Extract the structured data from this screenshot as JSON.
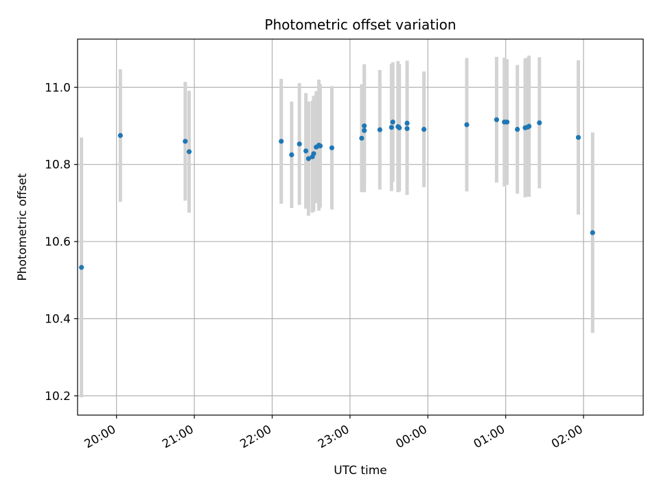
{
  "chart_data": {
    "type": "scatter",
    "title": "Photometric offset variation",
    "xlabel": "UTC time",
    "ylabel": "Photometric offset",
    "x_unit": "UTC time (HH:MM)",
    "xlim": [
      "19:33",
      "02:46"
    ],
    "ylim": [
      10.15,
      11.125
    ],
    "x_ticks": [
      "20:00",
      "21:00",
      "22:00",
      "23:00",
      "00:00",
      "01:00",
      "02:00"
    ],
    "y_ticks": [
      10.2,
      10.4,
      10.6,
      10.8,
      11.0
    ],
    "y_tick_labels": [
      "10.2",
      "10.4",
      "10.6",
      "10.8",
      "11.0"
    ],
    "grid": true,
    "legend": "none",
    "series": [
      {
        "marker_color": "#1f77b4",
        "errorbar_color": "#d3d3d3",
        "points": [
          {
            "t": "19:33",
            "y": 10.533,
            "err": 0.337
          },
          {
            "t": "20:03",
            "y": 10.875,
            "err": 0.172
          },
          {
            "t": "20:53",
            "y": 10.86,
            "err": 0.154
          },
          {
            "t": "20:56",
            "y": 10.833,
            "err": 0.158
          },
          {
            "t": "22:07",
            "y": 10.86,
            "err": 0.162
          },
          {
            "t": "22:15",
            "y": 10.825,
            "err": 0.138
          },
          {
            "t": "22:21",
            "y": 10.853,
            "err": 0.158
          },
          {
            "t": "22:26",
            "y": 10.835,
            "err": 0.15
          },
          {
            "t": "22:28",
            "y": 10.815,
            "err": 0.148
          },
          {
            "t": "22:31",
            "y": 10.82,
            "err": 0.145
          },
          {
            "t": "22:32",
            "y": 10.828,
            "err": 0.15
          },
          {
            "t": "22:34",
            "y": 10.845,
            "err": 0.145
          },
          {
            "t": "22:36",
            "y": 10.85,
            "err": 0.17
          },
          {
            "t": "22:37",
            "y": 10.848,
            "err": 0.16
          },
          {
            "t": "22:46",
            "y": 10.843,
            "err": 0.16
          },
          {
            "t": "23:09",
            "y": 10.868,
            "err": 0.14
          },
          {
            "t": "23:11",
            "y": 10.9,
            "err": 0.16
          },
          {
            "t": "23:11",
            "y": 10.888,
            "err": 0.16
          },
          {
            "t": "23:23",
            "y": 10.89,
            "err": 0.155
          },
          {
            "t": "23:32",
            "y": 10.896,
            "err": 0.165
          },
          {
            "t": "23:33",
            "y": 10.91,
            "err": 0.155
          },
          {
            "t": "23:37",
            "y": 10.898,
            "err": 0.17
          },
          {
            "t": "23:38",
            "y": 10.895,
            "err": 0.165
          },
          {
            "t": "23:44",
            "y": 10.907,
            "err": 0.162
          },
          {
            "t": "23:44",
            "y": 10.893,
            "err": 0.172
          },
          {
            "t": "23:57",
            "y": 10.891,
            "err": 0.15
          },
          {
            "t": "00:30",
            "y": 10.903,
            "err": 0.173
          },
          {
            "t": "00:53",
            "y": 10.916,
            "err": 0.163
          },
          {
            "t": "00:59",
            "y": 10.91,
            "err": 0.167
          },
          {
            "t": "01:01",
            "y": 10.91,
            "err": 0.163
          },
          {
            "t": "01:09",
            "y": 10.891,
            "err": 0.167
          },
          {
            "t": "01:15",
            "y": 10.895,
            "err": 0.18
          },
          {
            "t": "01:17",
            "y": 10.897,
            "err": 0.18
          },
          {
            "t": "01:18",
            "y": 10.899,
            "err": 0.183
          },
          {
            "t": "01:26",
            "y": 10.908,
            "err": 0.17
          },
          {
            "t": "01:56",
            "y": 10.87,
            "err": 0.2
          },
          {
            "t": "02:07",
            "y": 10.623,
            "err": 0.26
          }
        ]
      }
    ]
  }
}
